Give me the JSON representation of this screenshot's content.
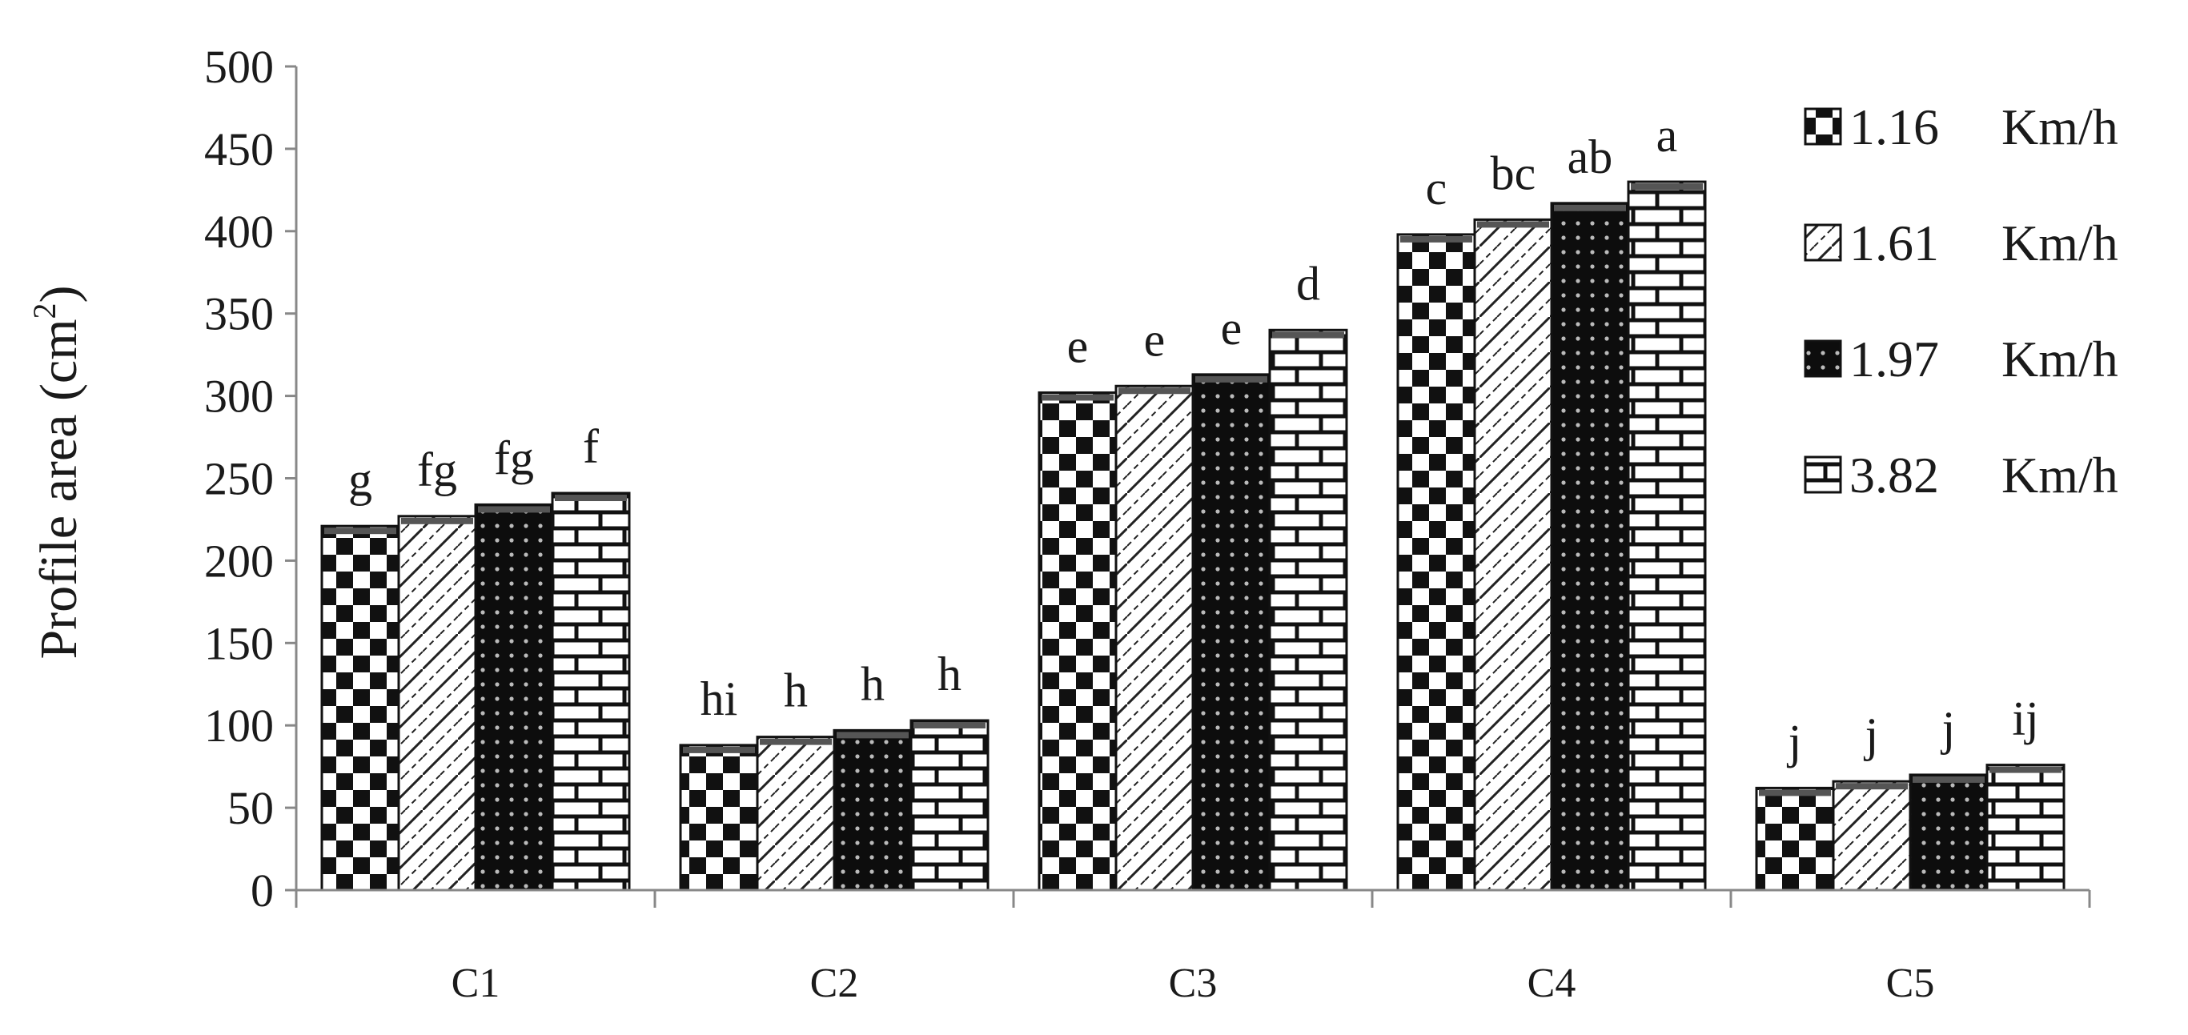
{
  "chart_data": {
    "type": "bar",
    "ylabel": "Profile area (cm",
    "ylabel_superscript": "2",
    "ylabel_suffix": ")",
    "ylim": [
      0,
      500
    ],
    "yticks": [
      0,
      50,
      100,
      150,
      200,
      250,
      300,
      350,
      400,
      450,
      500
    ],
    "ytick_labels": [
      "0",
      "50",
      "100",
      "150",
      "200",
      "250",
      "300",
      "350",
      "400",
      "450",
      "500"
    ],
    "grid": false,
    "legend_position": "right",
    "categories": [
      "C1",
      "C2",
      "C3",
      "C4",
      "C5"
    ],
    "series": [
      {
        "name": "1.16",
        "unit": "Km/h",
        "pattern": "checker",
        "values": [
          221,
          88,
          302,
          398,
          62
        ],
        "labels": [
          "g",
          "hi",
          "e",
          "c",
          "j"
        ]
      },
      {
        "name": "1.61",
        "unit": "Km/h",
        "pattern": "diagonal",
        "values": [
          227,
          93,
          306,
          407,
          66
        ],
        "labels": [
          "fg",
          "h",
          "e",
          "bc",
          "j"
        ]
      },
      {
        "name": "1.97",
        "unit": "Km/h",
        "pattern": "dots",
        "values": [
          234,
          97,
          313,
          417,
          70
        ],
        "labels": [
          "fg",
          "h",
          "e",
          "ab",
          "j"
        ]
      },
      {
        "name": "3.82",
        "unit": "Km/h",
        "pattern": "brick",
        "values": [
          241,
          103,
          340,
          430,
          76
        ],
        "labels": [
          "f",
          "h",
          "d",
          "a",
          "ij"
        ]
      }
    ]
  }
}
